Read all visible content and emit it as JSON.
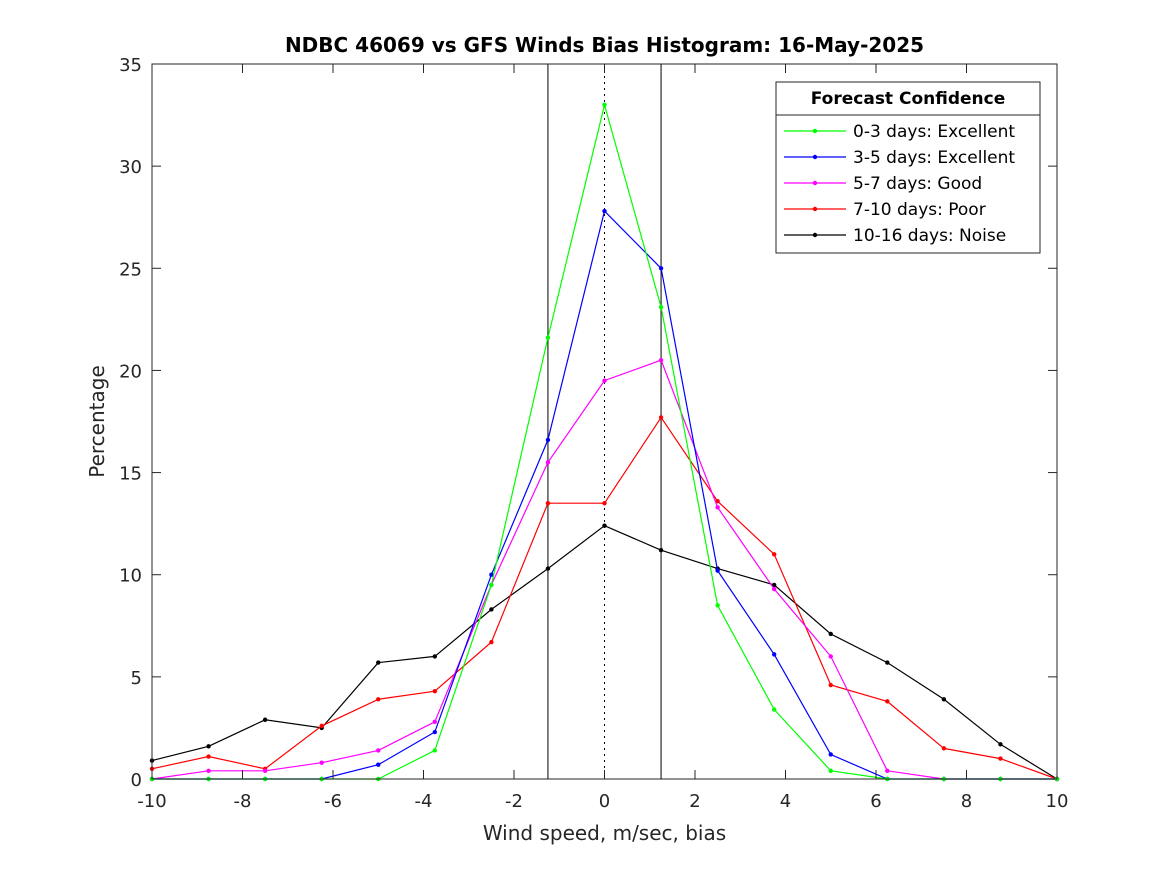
{
  "chart_data": {
    "type": "line",
    "title": "NDBC 46069 vs GFS Winds Bias Histogram: 16-May-2025",
    "xlabel": "Wind speed, m/sec, bias",
    "ylabel": "Percentage",
    "xlim": [
      -10,
      10
    ],
    "ylim": [
      0,
      35
    ],
    "xticks": [
      -10,
      -8,
      -6,
      -4,
      -2,
      0,
      2,
      4,
      6,
      8,
      10
    ],
    "yticks": [
      0,
      5,
      10,
      15,
      20,
      25,
      30,
      35
    ],
    "grid": false,
    "legend": {
      "title": "Forecast Confidence",
      "placement": "top-right"
    },
    "x": [
      -10,
      -8.75,
      -7.5,
      -6.25,
      -5,
      -3.75,
      -2.5,
      -1.25,
      0,
      1.25,
      2.5,
      3.75,
      5,
      6.25,
      7.5,
      8.75,
      10
    ],
    "series": [
      {
        "name": "0-3 days: Excellent",
        "color": "#00ff00",
        "values": [
          0,
          0,
          0,
          0,
          0,
          1.4,
          9.5,
          21.6,
          33.0,
          23.1,
          8.5,
          3.4,
          0.4,
          0,
          0,
          0,
          0
        ]
      },
      {
        "name": "3-5 days: Excellent",
        "color": "#0000ff",
        "values": [
          0,
          0,
          0,
          0,
          0.7,
          2.3,
          10.0,
          16.6,
          27.8,
          25.0,
          10.2,
          6.1,
          1.2,
          0,
          0,
          0,
          0
        ]
      },
      {
        "name": "5-7 days: Good",
        "color": "#ff00ff",
        "values": [
          0,
          0.4,
          0.4,
          0.8,
          1.4,
          2.8,
          9.5,
          15.5,
          19.5,
          20.5,
          13.3,
          9.3,
          6.0,
          0.4,
          0,
          0,
          0
        ]
      },
      {
        "name": "7-10 days: Poor",
        "color": "#ff0000",
        "values": [
          0.5,
          1.1,
          0.5,
          2.6,
          3.9,
          4.3,
          6.7,
          13.5,
          13.5,
          17.7,
          13.6,
          11.0,
          4.6,
          3.8,
          1.5,
          1.0,
          0
        ]
      },
      {
        "name": "10-16 days: Noise",
        "color": "#000000",
        "values": [
          0.9,
          1.6,
          2.9,
          2.5,
          5.7,
          6.0,
          8.3,
          10.3,
          12.4,
          11.2,
          10.3,
          9.5,
          7.1,
          5.7,
          3.9,
          1.7,
          0
        ]
      }
    ],
    "reference_lines": [
      {
        "x": -1.25,
        "style": "solid"
      },
      {
        "x": 0,
        "style": "dotted"
      },
      {
        "x": 1.25,
        "style": "solid"
      }
    ]
  }
}
